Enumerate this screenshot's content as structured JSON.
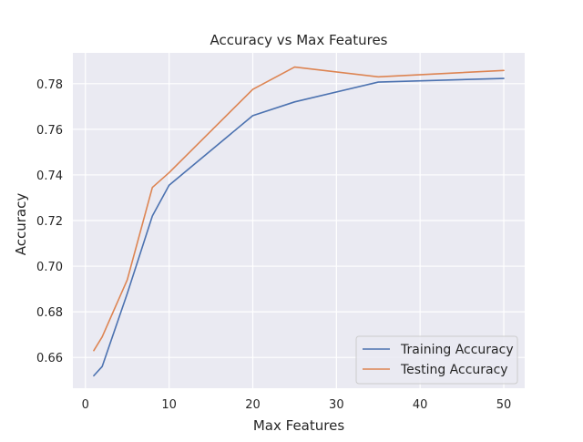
{
  "chart_data": {
    "type": "line",
    "title": "Accuracy vs Max Features",
    "xlabel": "Max Features",
    "ylabel": "Accuracy",
    "x": [
      1,
      2,
      5,
      8,
      10,
      20,
      25,
      35,
      50
    ],
    "series": [
      {
        "name": "Training Accuracy",
        "color": "#4c72b0",
        "values": [
          0.652,
          0.656,
          0.688,
          0.722,
          0.7355,
          0.766,
          0.772,
          0.7807,
          0.7823
        ]
      },
      {
        "name": "Testing Accuracy",
        "color": "#dd8452",
        "values": [
          0.663,
          0.669,
          0.694,
          0.7345,
          0.741,
          0.7775,
          0.7873,
          0.783,
          0.7858
        ]
      }
    ],
    "xlim": [
      -1.5,
      52.5
    ],
    "ylim": [
      0.6465,
      0.7935
    ],
    "xticks": [
      0,
      10,
      20,
      30,
      40,
      50
    ],
    "xtick_labels": [
      "0",
      "10",
      "20",
      "30",
      "40",
      "50"
    ],
    "yticks": [
      0.66,
      0.68,
      0.7,
      0.72,
      0.74,
      0.76,
      0.78
    ],
    "ytick_labels": [
      "0.66",
      "0.68",
      "0.70",
      "0.72",
      "0.74",
      "0.76",
      "0.78"
    ],
    "grid": true,
    "legend_position": "lower-right",
    "background_color": "#eaeaf2",
    "grid_color": "#ffffff"
  }
}
